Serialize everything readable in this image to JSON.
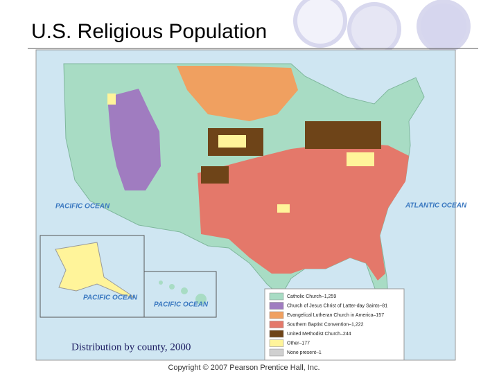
{
  "title": "U.S. Religious Population",
  "caption": "Distribution by county, 2000",
  "copyright": "Copyright © 2007 Pearson Prentice Hall, Inc.",
  "map": {
    "ocean_labels": [
      "PACIFIC OCEAN",
      "ATLANTIC OCEAN",
      "PACIFIC OCEAN",
      "PACIFIC OCEAN"
    ],
    "legend": [
      {
        "label": "Catholic Church–1,259",
        "color": "#a8dcc4"
      },
      {
        "label": "Church of Jesus Christ of Latter-day Saints–81",
        "color": "#a07cc0"
      },
      {
        "label": "Evangelical Lutheran Church in America–157",
        "color": "#f0a060"
      },
      {
        "label": "Southern Baptist Convention–1,222",
        "color": "#e4786a"
      },
      {
        "label": "United Methodist Church–244",
        "color": "#6e4418"
      },
      {
        "label": "Other–177",
        "color": "#fff49a"
      },
      {
        "label": "None present–1",
        "color": "#d0d0d0"
      }
    ]
  }
}
